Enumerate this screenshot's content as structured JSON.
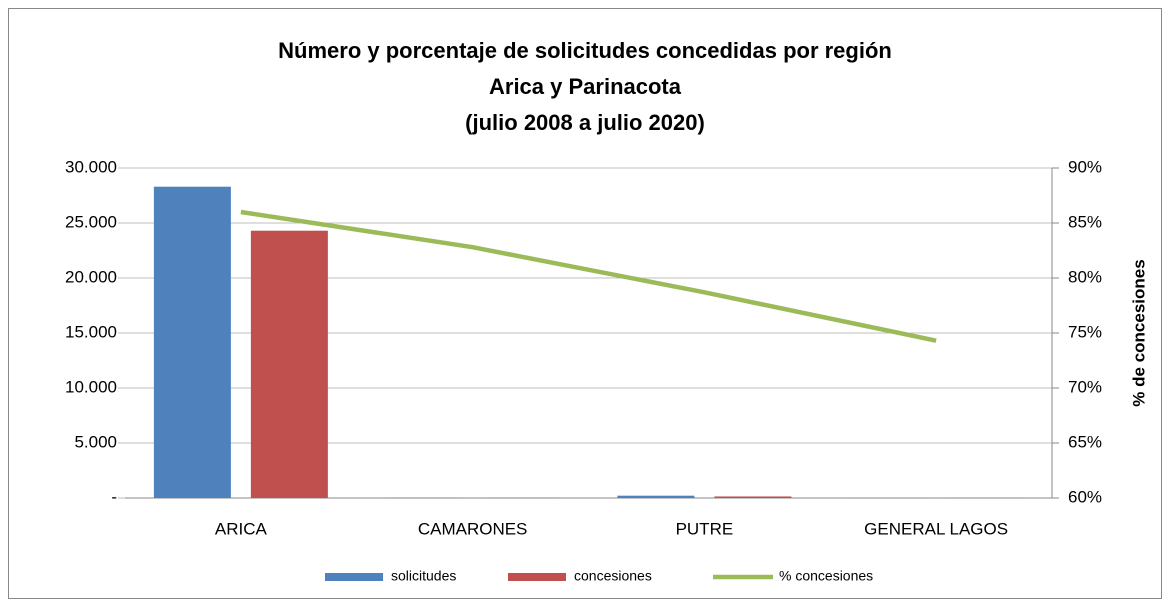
{
  "chart_data": {
    "type": "bar-line",
    "title": [
      "Número y porcentaje de solicitudes concedidas por región",
      "Arica y Parinacota",
      "(julio 2008 a julio 2020)"
    ],
    "y2_label": "% de concesiones",
    "categories": [
      "ARICA",
      "CAMARONES",
      "PUTRE",
      "GENERAL LAGOS"
    ],
    "series": [
      {
        "name": "solicitudes",
        "type": "bar",
        "color": "#4f81bd",
        "values": [
          28300,
          30,
          210,
          20
        ]
      },
      {
        "name": "concesiones",
        "type": "bar",
        "color": "#c0504d",
        "values": [
          24300,
          20,
          140,
          15
        ]
      },
      {
        "name": "% concesiones",
        "type": "line",
        "axis": "y2",
        "color": "#9bbb59",
        "values": [
          86,
          82.8,
          78.7,
          74.3
        ]
      }
    ],
    "ylim": [
      0,
      30000
    ],
    "yticks": [
      {
        "value": 0,
        "label": "-"
      },
      {
        "value": 5000,
        "label": "5.000"
      },
      {
        "value": 10000,
        "label": "10.000"
      },
      {
        "value": 15000,
        "label": "15.000"
      },
      {
        "value": 20000,
        "label": "20.000"
      },
      {
        "value": 25000,
        "label": "25.000"
      },
      {
        "value": 30000,
        "label": "30.000"
      }
    ],
    "y2lim": [
      60,
      90
    ],
    "y2ticks": [
      {
        "value": 60,
        "label": "60%"
      },
      {
        "value": 65,
        "label": "65%"
      },
      {
        "value": 70,
        "label": "70%"
      },
      {
        "value": 75,
        "label": "75%"
      },
      {
        "value": 80,
        "label": "80%"
      },
      {
        "value": 85,
        "label": "85%"
      },
      {
        "value": 90,
        "label": "90%"
      }
    ],
    "grid": true,
    "legend": "bottom"
  }
}
